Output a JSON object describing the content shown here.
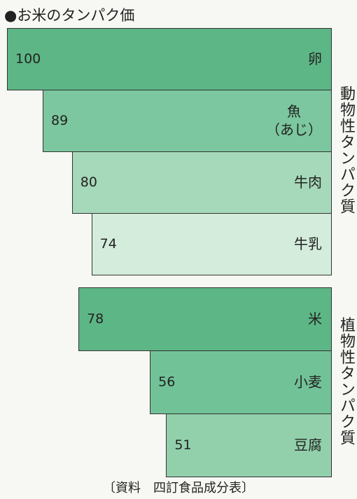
{
  "title": "●お米のタンパク価",
  "source": "〔資料　四訂食品成分表〕",
  "chart_data": [
    {
      "type": "bar",
      "title": "動物性タンパク質",
      "categories": [
        "卵",
        "魚\n（あじ）",
        "牛肉",
        "牛乳"
      ],
      "values": [
        100,
        89,
        80,
        74
      ],
      "colors": [
        "#5db685",
        "#7cc79f",
        "#a6d9b9",
        "#d3ecdb"
      ],
      "xlim": [
        0,
        100
      ]
    },
    {
      "type": "bar",
      "title": "植物性タンパク質",
      "categories": [
        "米",
        "小麦",
        "豆腐"
      ],
      "values": [
        78,
        56,
        51
      ],
      "colors": [
        "#5db685",
        "#72c298",
        "#92d0ab"
      ],
      "xlim": [
        0,
        100
      ]
    }
  ]
}
